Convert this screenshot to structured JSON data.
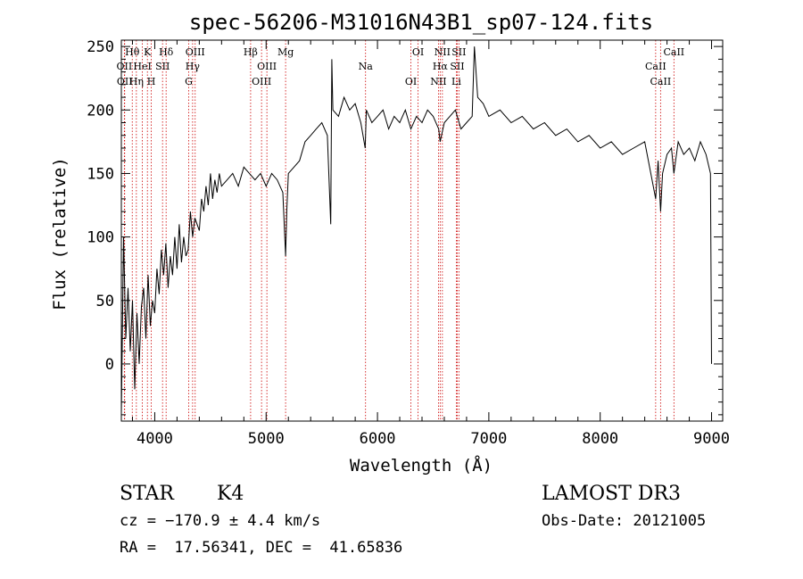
{
  "chart_data": {
    "type": "line",
    "title": "spec-56206-M31016N43B1_sp07-124.fits",
    "xlabel": "Wavelength (Å)",
    "ylabel": "Flux (relative)",
    "xlim": [
      3700,
      9100
    ],
    "ylim": [
      -45,
      255
    ],
    "xticks": [
      4000,
      5000,
      6000,
      7000,
      8000,
      9000
    ],
    "yticks": [
      0,
      50,
      100,
      150,
      200,
      250
    ],
    "grid": false,
    "series": [
      {
        "name": "flux",
        "x": [
          3700,
          3720,
          3740,
          3760,
          3780,
          3800,
          3820,
          3840,
          3860,
          3880,
          3900,
          3920,
          3940,
          3960,
          3980,
          4000,
          4020,
          4040,
          4060,
          4080,
          4100,
          4120,
          4140,
          4160,
          4180,
          4200,
          4220,
          4240,
          4260,
          4280,
          4300,
          4320,
          4340,
          4360,
          4380,
          4400,
          4420,
          4440,
          4460,
          4480,
          4500,
          4520,
          4540,
          4560,
          4580,
          4600,
          4650,
          4700,
          4750,
          4800,
          4850,
          4900,
          4950,
          5000,
          5050,
          5100,
          5150,
          5175,
          5185,
          5200,
          5250,
          5300,
          5350,
          5400,
          5450,
          5500,
          5550,
          5580,
          5590,
          5600,
          5650,
          5700,
          5750,
          5800,
          5850,
          5890,
          5900,
          5950,
          6000,
          6050,
          6100,
          6150,
          6200,
          6250,
          6300,
          6350,
          6400,
          6450,
          6500,
          6550,
          6563,
          6600,
          6650,
          6700,
          6750,
          6800,
          6850,
          6870,
          6900,
          6950,
          7000,
          7100,
          7200,
          7300,
          7400,
          7500,
          7600,
          7700,
          7800,
          7900,
          8000,
          8100,
          8200,
          8300,
          8400,
          8498,
          8520,
          8542,
          8560,
          8600,
          8640,
          8662,
          8700,
          8750,
          8800,
          8850,
          8900,
          8950,
          8990,
          9000
        ],
        "values": [
          -40,
          100,
          20,
          60,
          10,
          50,
          -20,
          40,
          0,
          45,
          60,
          20,
          70,
          30,
          50,
          40,
          75,
          55,
          90,
          70,
          95,
          60,
          85,
          70,
          100,
          75,
          110,
          80,
          100,
          85,
          90,
          120,
          100,
          115,
          110,
          105,
          130,
          120,
          140,
          125,
          150,
          130,
          145,
          135,
          150,
          140,
          145,
          150,
          140,
          155,
          150,
          145,
          150,
          140,
          150,
          145,
          135,
          85,
          120,
          150,
          155,
          160,
          175,
          180,
          185,
          190,
          180,
          110,
          240,
          200,
          195,
          210,
          200,
          205,
          190,
          170,
          200,
          190,
          195,
          200,
          185,
          195,
          190,
          200,
          185,
          195,
          190,
          200,
          195,
          185,
          175,
          190,
          195,
          200,
          185,
          190,
          195,
          250,
          210,
          205,
          195,
          200,
          190,
          195,
          185,
          190,
          180,
          185,
          175,
          180,
          170,
          175,
          165,
          170,
          175,
          130,
          160,
          120,
          150,
          165,
          170,
          150,
          175,
          165,
          170,
          160,
          175,
          165,
          150,
          0
        ]
      }
    ],
    "line_marks": [
      {
        "label": "Hθ",
        "x": 3798
      },
      {
        "label": "OII",
        "x": 3727
      },
      {
        "label": "OII",
        "x": 3730
      },
      {
        "label": "K",
        "x": 3934
      },
      {
        "label": "HeI",
        "x": 3889
      },
      {
        "label": "Hη",
        "x": 3835
      },
      {
        "label": "Hδ",
        "x": 4102
      },
      {
        "label": "SII",
        "x": 4070
      },
      {
        "label": "H",
        "x": 3969
      },
      {
        "label": "OIII",
        "x": 4363
      },
      {
        "label": "Hγ",
        "x": 4340
      },
      {
        "label": "G",
        "x": 4305
      },
      {
        "label": "Hβ",
        "x": 4861
      },
      {
        "label": "OIII",
        "x": 5007
      },
      {
        "label": "OIII",
        "x": 4959
      },
      {
        "label": "Mg",
        "x": 5175
      },
      {
        "label": "Na",
        "x": 5893
      },
      {
        "label": "OI",
        "x": 6300
      },
      {
        "label": "OI",
        "x": 6364
      },
      {
        "label": "Hα",
        "x": 6563
      },
      {
        "label": "NII",
        "x": 6548
      },
      {
        "label": "NII",
        "x": 6583
      },
      {
        "label": "SII",
        "x": 6716
      },
      {
        "label": "Li",
        "x": 6708
      },
      {
        "label": "SII",
        "x": 6731
      },
      {
        "label": "CaII",
        "x": 8498
      },
      {
        "label": "CaII",
        "x": 8542
      },
      {
        "label": "CaII",
        "x": 8662
      }
    ],
    "annotations": {
      "object_class": "STAR",
      "subclass": "K4",
      "survey": "LAMOST DR3",
      "cz": "cz = −170.9 ± 4.4 km/s",
      "obs_date": "Obs-Date: 20121005",
      "coords": "RA =  17.56341, DEC =  41.65836"
    },
    "colors": {
      "axes": "#000000",
      "line": "#000000",
      "markers": "#cc0000",
      "background": "#ffffff"
    }
  }
}
